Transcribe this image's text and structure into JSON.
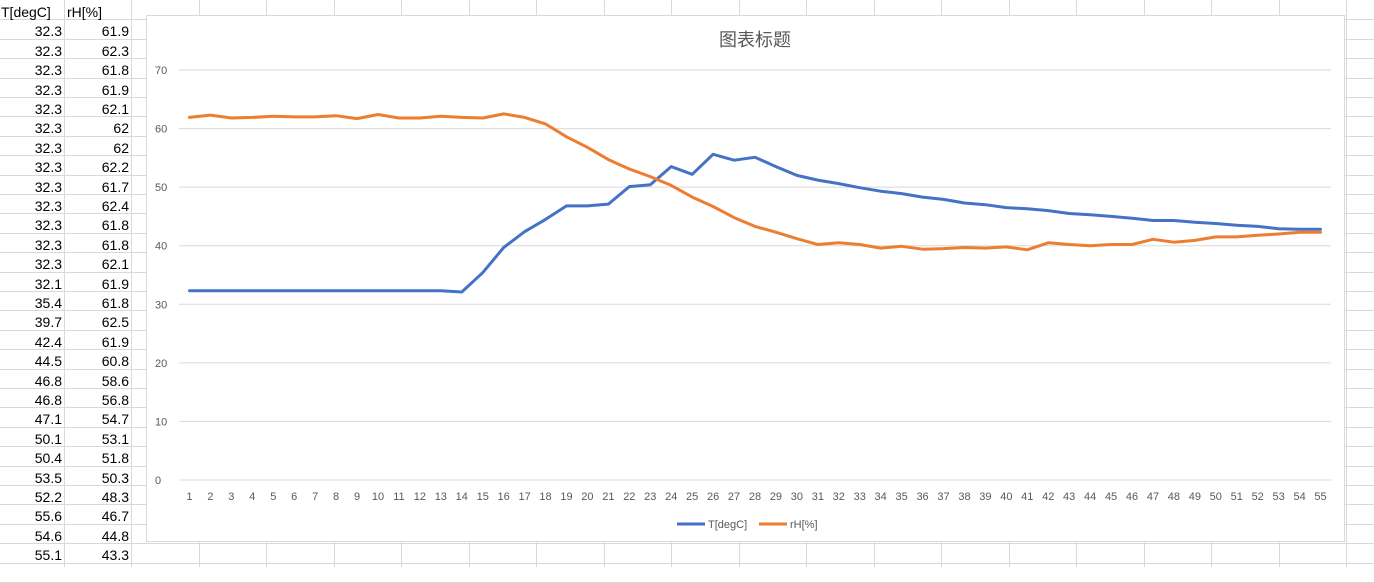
{
  "sheet": {
    "col_headers": [
      "T[degC]",
      "rH[%]"
    ],
    "rows": [
      [
        "32.3",
        "61.9"
      ],
      [
        "32.3",
        "62.3"
      ],
      [
        "32.3",
        "61.8"
      ],
      [
        "32.3",
        "61.9"
      ],
      [
        "32.3",
        "62.1"
      ],
      [
        "32.3",
        "62"
      ],
      [
        "32.3",
        "62"
      ],
      [
        "32.3",
        "62.2"
      ],
      [
        "32.3",
        "61.7"
      ],
      [
        "32.3",
        "62.4"
      ],
      [
        "32.3",
        "61.8"
      ],
      [
        "32.3",
        "61.8"
      ],
      [
        "32.3",
        "62.1"
      ],
      [
        "32.1",
        "61.9"
      ],
      [
        "35.4",
        "61.8"
      ],
      [
        "39.7",
        "62.5"
      ],
      [
        "42.4",
        "61.9"
      ],
      [
        "44.5",
        "60.8"
      ],
      [
        "46.8",
        "58.6"
      ],
      [
        "46.8",
        "56.8"
      ],
      [
        "47.1",
        "54.7"
      ],
      [
        "50.1",
        "53.1"
      ],
      [
        "50.4",
        "51.8"
      ],
      [
        "53.5",
        "50.3"
      ],
      [
        "52.2",
        "48.3"
      ],
      [
        "55.6",
        "46.7"
      ],
      [
        "54.6",
        "44.8"
      ],
      [
        "55.1",
        "43.3"
      ]
    ]
  },
  "chart_data": {
    "type": "line",
    "title": "图表标题",
    "x": [
      1,
      2,
      3,
      4,
      5,
      6,
      7,
      8,
      9,
      10,
      11,
      12,
      13,
      14,
      15,
      16,
      17,
      18,
      19,
      20,
      21,
      22,
      23,
      24,
      25,
      26,
      27,
      28,
      29,
      30,
      31,
      32,
      33,
      34,
      35,
      36,
      37,
      38,
      39,
      40,
      41,
      42,
      43,
      44,
      45,
      46,
      47,
      48,
      49,
      50,
      51,
      52,
      53,
      54,
      55
    ],
    "ylim": [
      0,
      70
    ],
    "yticks": [
      0,
      10,
      20,
      30,
      40,
      50,
      60,
      70
    ],
    "grid": true,
    "legend": "bottom",
    "series": [
      {
        "name": "T[degC]",
        "color": "#4472c4",
        "values": [
          32.3,
          32.3,
          32.3,
          32.3,
          32.3,
          32.3,
          32.3,
          32.3,
          32.3,
          32.3,
          32.3,
          32.3,
          32.3,
          32.1,
          35.4,
          39.7,
          42.4,
          44.5,
          46.8,
          46.8,
          47.1,
          50.1,
          50.4,
          53.5,
          52.2,
          55.6,
          54.6,
          55.1,
          53.5,
          52.0,
          51.2,
          50.6,
          49.9,
          49.3,
          48.9,
          48.3,
          47.9,
          47.3,
          47.0,
          46.5,
          46.3,
          46.0,
          45.5,
          45.3,
          45.0,
          44.7,
          44.3,
          44.3,
          44.0,
          43.8,
          43.5,
          43.3,
          42.9,
          42.8,
          42.8
        ]
      },
      {
        "name": "rH[%]",
        "color": "#ed7d31",
        "values": [
          61.9,
          62.3,
          61.8,
          61.9,
          62.1,
          62,
          62,
          62.2,
          61.7,
          62.4,
          61.8,
          61.8,
          62.1,
          61.9,
          61.8,
          62.5,
          61.9,
          60.8,
          58.6,
          56.8,
          54.7,
          53.1,
          51.8,
          50.3,
          48.3,
          46.7,
          44.8,
          43.3,
          42.3,
          41.2,
          40.2,
          40.5,
          40.2,
          39.6,
          39.9,
          39.4,
          39.5,
          39.7,
          39.6,
          39.8,
          39.3,
          40.5,
          40.2,
          40.0,
          40.2,
          40.2,
          41.1,
          40.6,
          40.9,
          41.5,
          41.5,
          41.8,
          42.0,
          42.3,
          42.3
        ]
      }
    ]
  }
}
